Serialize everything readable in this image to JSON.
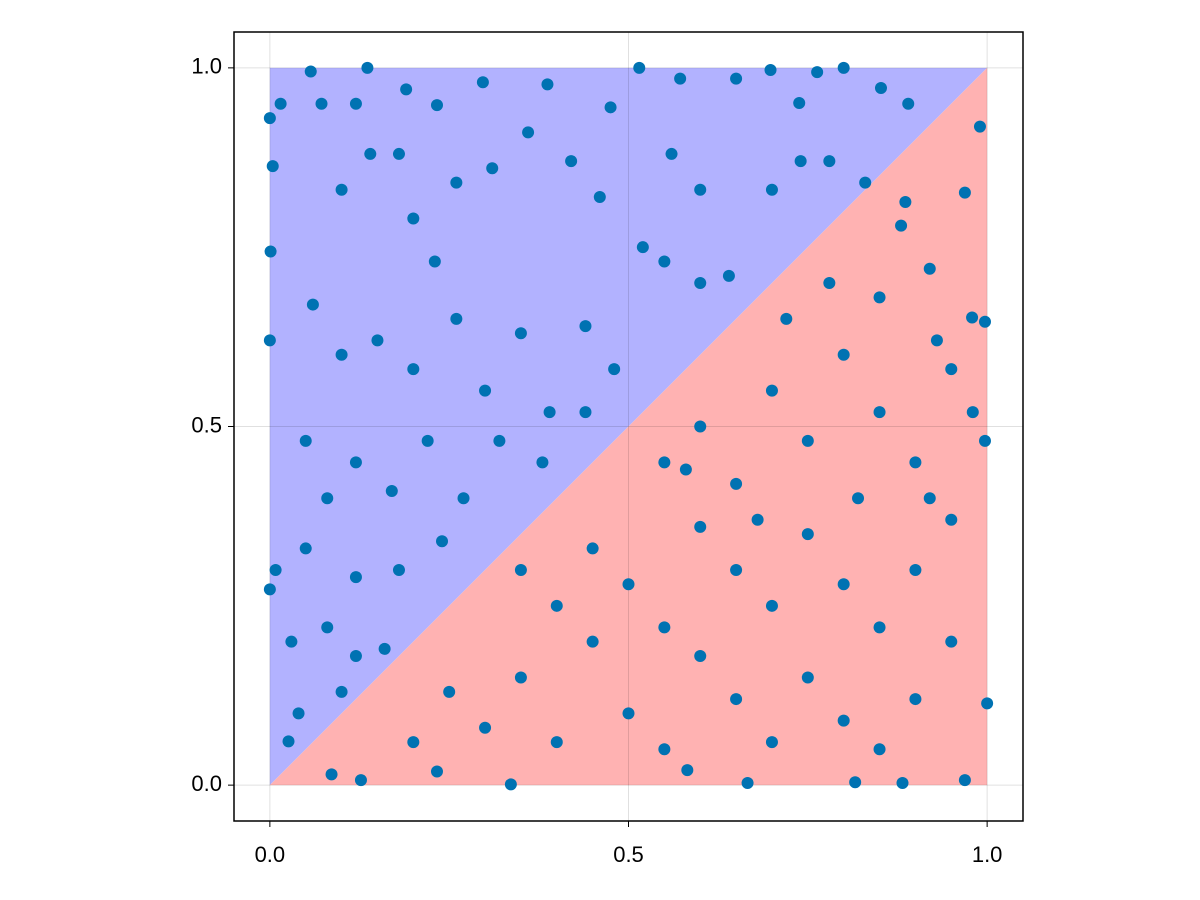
{
  "chart_data": {
    "type": "scatter",
    "xlim": [
      -0.05,
      1.05
    ],
    "ylim": [
      -0.05,
      1.05
    ],
    "xticks": [
      {
        "value": 0,
        "label": "0.0"
      },
      0.5,
      {
        "value": 1,
        "label": "1.0"
      }
    ],
    "yticks": [
      {
        "value": 0,
        "label": "0.0"
      },
      0.5,
      {
        "value": 1,
        "label": "1.0"
      }
    ],
    "grid": true,
    "fills": [
      {
        "color": "#b2b2ff",
        "x": [
          0,
          0,
          1
        ],
        "y": [
          0,
          1,
          1
        ]
      },
      {
        "color": "#ffb2b2",
        "x": [
          0,
          1,
          1
        ],
        "y": [
          0,
          0,
          1
        ]
      }
    ],
    "series": [
      {
        "color": "#0072b2",
        "x": [
          0.057,
          0.136,
          0.515,
          0.698,
          0.763,
          0.8,
          0,
          0.015,
          0.072,
          0.12,
          0.19,
          0.233,
          0.297,
          0.387,
          0.475,
          0.572,
          0.65,
          0.738,
          0.852,
          0.89,
          0.99,
          0.969,
          0.886,
          0.979,
          0.997,
          0.997,
          1.0,
          0.969,
          0.882,
          0.816,
          0.666,
          0.582,
          0.336,
          0.233,
          0.127,
          0.086,
          0.026,
          0,
          0.008,
          0,
          0.001,
          0.004,
          0.1,
          0.14,
          0.18,
          0.2,
          0.23,
          0.26,
          0.31,
          0.36,
          0.42,
          0.46,
          0.52,
          0.56,
          0.6,
          0.64,
          0.7,
          0.74,
          0.78,
          0.83,
          0.06,
          0.1,
          0.15,
          0.2,
          0.26,
          0.3,
          0.35,
          0.39,
          0.44,
          0.48,
          0.55,
          0.6,
          0.05,
          0.08,
          0.12,
          0.17,
          0.22,
          0.27,
          0.32,
          0.38,
          0.44,
          0.05,
          0.12,
          0.18,
          0.24,
          0.03,
          0.08,
          0.12,
          0.04,
          0.1,
          0.16,
          0.2,
          0.25,
          0.3,
          0.35,
          0.4,
          0.45,
          0.5,
          0.55,
          0.6,
          0.65,
          0.7,
          0.75,
          0.8,
          0.85,
          0.9,
          0.95,
          0.35,
          0.4,
          0.45,
          0.5,
          0.55,
          0.6,
          0.65,
          0.7,
          0.75,
          0.8,
          0.85,
          0.9,
          0.95,
          0.55,
          0.6,
          0.65,
          0.7,
          0.75,
          0.8,
          0.85,
          0.9,
          0.95,
          0.72,
          0.78,
          0.85,
          0.92,
          0.88,
          0.93,
          0.98,
          0.58,
          0.68,
          0.82,
          0.92
        ],
        "y": [
          0.995,
          1.0,
          1.0,
          0.997,
          0.994,
          1.0,
          0.93,
          0.95,
          0.95,
          0.95,
          0.97,
          0.948,
          0.98,
          0.977,
          0.945,
          0.985,
          0.985,
          0.951,
          0.972,
          0.95,
          0.918,
          0.826,
          0.813,
          0.652,
          0.646,
          0.48,
          0.114,
          0.007,
          0.003,
          0.004,
          0.003,
          0.021,
          0.001,
          0.019,
          0.007,
          0.015,
          0.061,
          0.273,
          0.3,
          0.62,
          0.744,
          0.863,
          0.83,
          0.88,
          0.88,
          0.79,
          0.73,
          0.84,
          0.86,
          0.91,
          0.87,
          0.82,
          0.75,
          0.88,
          0.83,
          0.71,
          0.83,
          0.87,
          0.87,
          0.84,
          0.67,
          0.6,
          0.62,
          0.58,
          0.65,
          0.55,
          0.63,
          0.52,
          0.64,
          0.58,
          0.73,
          0.7,
          0.48,
          0.4,
          0.45,
          0.41,
          0.48,
          0.4,
          0.48,
          0.45,
          0.52,
          0.33,
          0.29,
          0.3,
          0.34,
          0.2,
          0.22,
          0.18,
          0.1,
          0.13,
          0.19,
          0.06,
          0.13,
          0.08,
          0.15,
          0.06,
          0.2,
          0.1,
          0.05,
          0.18,
          0.12,
          0.06,
          0.15,
          0.09,
          0.05,
          0.12,
          0.2,
          0.3,
          0.25,
          0.33,
          0.28,
          0.22,
          0.36,
          0.3,
          0.25,
          0.35,
          0.28,
          0.22,
          0.3,
          0.37,
          0.45,
          0.5,
          0.42,
          0.55,
          0.48,
          0.6,
          0.52,
          0.45,
          0.58,
          0.65,
          0.7,
          0.68,
          0.72,
          0.78,
          0.62,
          0.52,
          0.44,
          0.37,
          0.4,
          0.4
        ]
      }
    ]
  }
}
